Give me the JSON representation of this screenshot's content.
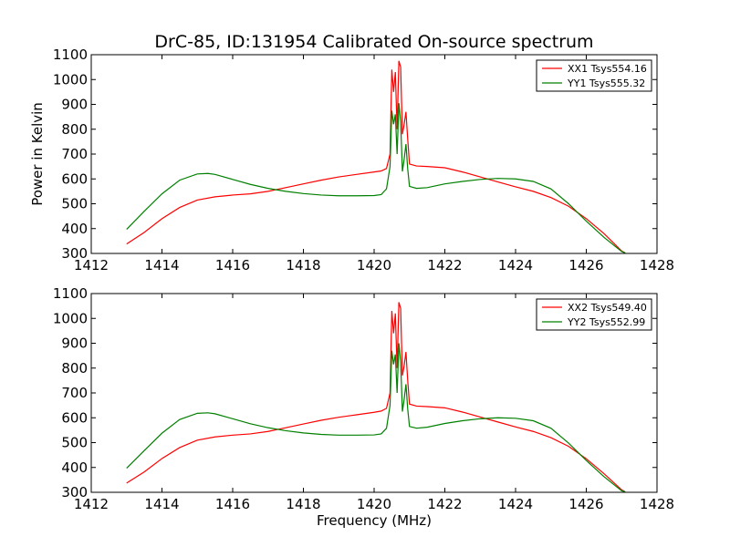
{
  "title": "DrC-85, ID:131954 Calibrated On-source spectrum",
  "chart_data": [
    {
      "type": "line",
      "xlabel": "",
      "ylabel": "Power in Kelvin",
      "xlim": [
        1412,
        1428
      ],
      "ylim": [
        300,
        1100
      ],
      "xticks": [
        1412,
        1414,
        1416,
        1418,
        1420,
        1422,
        1424,
        1426,
        1428
      ],
      "yticks": [
        300,
        400,
        500,
        600,
        700,
        800,
        900,
        1000,
        1100
      ],
      "legend_position": "top-right",
      "series": [
        {
          "name": "XX1 Tsys554.16",
          "color": "#ff0000",
          "points": [
            [
              1413.0,
              338
            ],
            [
              1413.5,
              385
            ],
            [
              1414.0,
              440
            ],
            [
              1414.5,
              485
            ],
            [
              1415.0,
              515
            ],
            [
              1415.5,
              528
            ],
            [
              1416.0,
              535
            ],
            [
              1416.5,
              540
            ],
            [
              1417.0,
              550
            ],
            [
              1417.5,
              565
            ],
            [
              1418.0,
              580
            ],
            [
              1418.5,
              595
            ],
            [
              1419.0,
              608
            ],
            [
              1419.5,
              618
            ],
            [
              1420.0,
              628
            ],
            [
              1420.2,
              632
            ],
            [
              1420.35,
              642
            ],
            [
              1420.45,
              700
            ],
            [
              1420.5,
              1040
            ],
            [
              1420.55,
              950
            ],
            [
              1420.6,
              1030
            ],
            [
              1420.65,
              800
            ],
            [
              1420.7,
              1075
            ],
            [
              1420.75,
              1050
            ],
            [
              1420.8,
              780
            ],
            [
              1420.85,
              820
            ],
            [
              1420.9,
              870
            ],
            [
              1420.95,
              760
            ],
            [
              1421.0,
              660
            ],
            [
              1421.2,
              652
            ],
            [
              1421.5,
              650
            ],
            [
              1422.0,
              645
            ],
            [
              1422.5,
              628
            ],
            [
              1423.0,
              608
            ],
            [
              1423.5,
              588
            ],
            [
              1424.0,
              568
            ],
            [
              1424.5,
              550
            ],
            [
              1425.0,
              525
            ],
            [
              1425.5,
              490
            ],
            [
              1426.0,
              440
            ],
            [
              1426.5,
              380
            ],
            [
              1427.0,
              310
            ],
            [
              1427.1,
              302
            ]
          ]
        },
        {
          "name": "YY1 Tsys555.32",
          "color": "#008000",
          "points": [
            [
              1413.0,
              397
            ],
            [
              1413.5,
              470
            ],
            [
              1414.0,
              540
            ],
            [
              1414.5,
              595
            ],
            [
              1415.0,
              620
            ],
            [
              1415.3,
              622
            ],
            [
              1415.5,
              618
            ],
            [
              1416.0,
              598
            ],
            [
              1416.5,
              578
            ],
            [
              1417.0,
              562
            ],
            [
              1417.5,
              550
            ],
            [
              1418.0,
              541
            ],
            [
              1418.5,
              535
            ],
            [
              1419.0,
              532
            ],
            [
              1419.5,
              532
            ],
            [
              1420.0,
              533
            ],
            [
              1420.2,
              537
            ],
            [
              1420.35,
              560
            ],
            [
              1420.45,
              650
            ],
            [
              1420.5,
              875
            ],
            [
              1420.55,
              820
            ],
            [
              1420.6,
              860
            ],
            [
              1420.65,
              700
            ],
            [
              1420.7,
              905
            ],
            [
              1420.75,
              830
            ],
            [
              1420.8,
              630
            ],
            [
              1420.85,
              680
            ],
            [
              1420.9,
              740
            ],
            [
              1420.95,
              640
            ],
            [
              1421.0,
              570
            ],
            [
              1421.2,
              562
            ],
            [
              1421.5,
              565
            ],
            [
              1422.0,
              580
            ],
            [
              1422.5,
              590
            ],
            [
              1423.0,
              598
            ],
            [
              1423.5,
              602
            ],
            [
              1424.0,
              600
            ],
            [
              1424.5,
              590
            ],
            [
              1425.0,
              560
            ],
            [
              1425.5,
              500
            ],
            [
              1426.0,
              430
            ],
            [
              1426.5,
              365
            ],
            [
              1427.0,
              308
            ],
            [
              1427.1,
              302
            ]
          ]
        }
      ]
    },
    {
      "type": "line",
      "xlabel": "Frequency (MHz)",
      "ylabel": "",
      "xlim": [
        1412,
        1428
      ],
      "ylim": [
        300,
        1100
      ],
      "xticks": [
        1412,
        1414,
        1416,
        1418,
        1420,
        1422,
        1424,
        1426,
        1428
      ],
      "yticks": [
        300,
        400,
        500,
        600,
        700,
        800,
        900,
        1000,
        1100
      ],
      "legend_position": "top-right",
      "series": [
        {
          "name": "XX2 Tsys549.40",
          "color": "#ff0000",
          "points": [
            [
              1413.0,
              337
            ],
            [
              1413.5,
              382
            ],
            [
              1414.0,
              436
            ],
            [
              1414.5,
              480
            ],
            [
              1415.0,
              510
            ],
            [
              1415.5,
              523
            ],
            [
              1416.0,
              530
            ],
            [
              1416.5,
              535
            ],
            [
              1417.0,
              545
            ],
            [
              1417.5,
              560
            ],
            [
              1418.0,
              575
            ],
            [
              1418.5,
              590
            ],
            [
              1419.0,
              602
            ],
            [
              1419.5,
              612
            ],
            [
              1420.0,
              622
            ],
            [
              1420.2,
              627
            ],
            [
              1420.35,
              638
            ],
            [
              1420.45,
              700
            ],
            [
              1420.5,
              1030
            ],
            [
              1420.55,
              940
            ],
            [
              1420.6,
              1020
            ],
            [
              1420.65,
              800
            ],
            [
              1420.7,
              1065
            ],
            [
              1420.75,
              1040
            ],
            [
              1420.8,
              770
            ],
            [
              1420.85,
              810
            ],
            [
              1420.9,
              865
            ],
            [
              1420.95,
              750
            ],
            [
              1421.0,
              655
            ],
            [
              1421.2,
              647
            ],
            [
              1421.5,
              645
            ],
            [
              1422.0,
              640
            ],
            [
              1422.5,
              623
            ],
            [
              1423.0,
              603
            ],
            [
              1423.5,
              583
            ],
            [
              1424.0,
              563
            ],
            [
              1424.5,
              545
            ],
            [
              1425.0,
              520
            ],
            [
              1425.5,
              485
            ],
            [
              1426.0,
              435
            ],
            [
              1426.5,
              375
            ],
            [
              1427.0,
              310
            ],
            [
              1427.1,
              302
            ]
          ]
        },
        {
          "name": "YY2 Tsys552.99",
          "color": "#008000",
          "points": [
            [
              1413.0,
              397
            ],
            [
              1413.5,
              468
            ],
            [
              1414.0,
              538
            ],
            [
              1414.5,
              593
            ],
            [
              1415.0,
              618
            ],
            [
              1415.3,
              620
            ],
            [
              1415.5,
              616
            ],
            [
              1416.0,
              596
            ],
            [
              1416.5,
              576
            ],
            [
              1417.0,
              560
            ],
            [
              1417.5,
              548
            ],
            [
              1418.0,
              539
            ],
            [
              1418.5,
              533
            ],
            [
              1419.0,
              530
            ],
            [
              1419.5,
              530
            ],
            [
              1420.0,
              531
            ],
            [
              1420.2,
              535
            ],
            [
              1420.35,
              558
            ],
            [
              1420.45,
              650
            ],
            [
              1420.5,
              870
            ],
            [
              1420.55,
              815
            ],
            [
              1420.6,
              855
            ],
            [
              1420.65,
              700
            ],
            [
              1420.7,
              900
            ],
            [
              1420.75,
              825
            ],
            [
              1420.8,
              625
            ],
            [
              1420.85,
              675
            ],
            [
              1420.9,
              735
            ],
            [
              1420.95,
              635
            ],
            [
              1421.0,
              565
            ],
            [
              1421.2,
              558
            ],
            [
              1421.5,
              562
            ],
            [
              1422.0,
              577
            ],
            [
              1422.5,
              588
            ],
            [
              1423.0,
              596
            ],
            [
              1423.5,
              600
            ],
            [
              1424.0,
              598
            ],
            [
              1424.5,
              588
            ],
            [
              1425.0,
              558
            ],
            [
              1425.5,
              498
            ],
            [
              1426.0,
              428
            ],
            [
              1426.5,
              363
            ],
            [
              1427.0,
              306
            ],
            [
              1427.1,
              302
            ]
          ]
        }
      ]
    }
  ]
}
